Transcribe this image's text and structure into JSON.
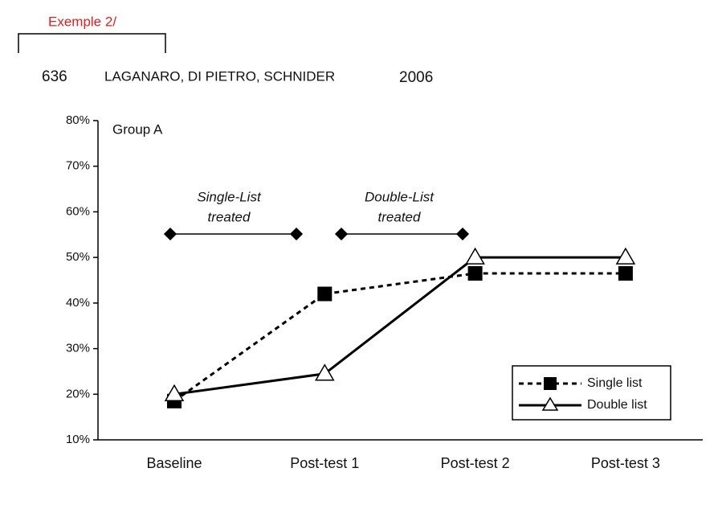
{
  "header": {
    "note": "Exemple 2/",
    "page": "636",
    "authors": "LAGANARO, DI PIETRO, SCHNIDER",
    "year": "2006"
  },
  "chart_data": {
    "type": "line",
    "categories": [
      "Baseline",
      "Post-test 1",
      "Post-test 2",
      "Post-test 3"
    ],
    "series": [
      {
        "name": "Single list",
        "color": "#000000",
        "line_style": "dashed",
        "marker": "square",
        "values": [
          18.5,
          42,
          46.5,
          46.5
        ]
      },
      {
        "name": "Double list",
        "color": "#000000",
        "line_style": "solid",
        "marker": "triangle",
        "values": [
          20,
          24.5,
          50,
          50
        ]
      }
    ],
    "ylim": [
      10,
      80
    ],
    "yticks": [
      {
        "value": 10,
        "label": "10%"
      },
      {
        "value": 20,
        "label": "20%"
      },
      {
        "value": 30,
        "label": "30%"
      },
      {
        "value": 40,
        "label": "40%"
      },
      {
        "value": 50,
        "label": "50%"
      },
      {
        "value": 60,
        "label": "60%"
      },
      {
        "value": 70,
        "label": "70%"
      },
      {
        "value": 80,
        "label": "80%"
      }
    ],
    "annotations": [
      {
        "text": "Group A"
      },
      {
        "lines": [
          "Single-List",
          "treated"
        ]
      },
      {
        "lines": [
          "Double-List",
          "treated"
        ]
      }
    ],
    "legend": "lower right"
  }
}
